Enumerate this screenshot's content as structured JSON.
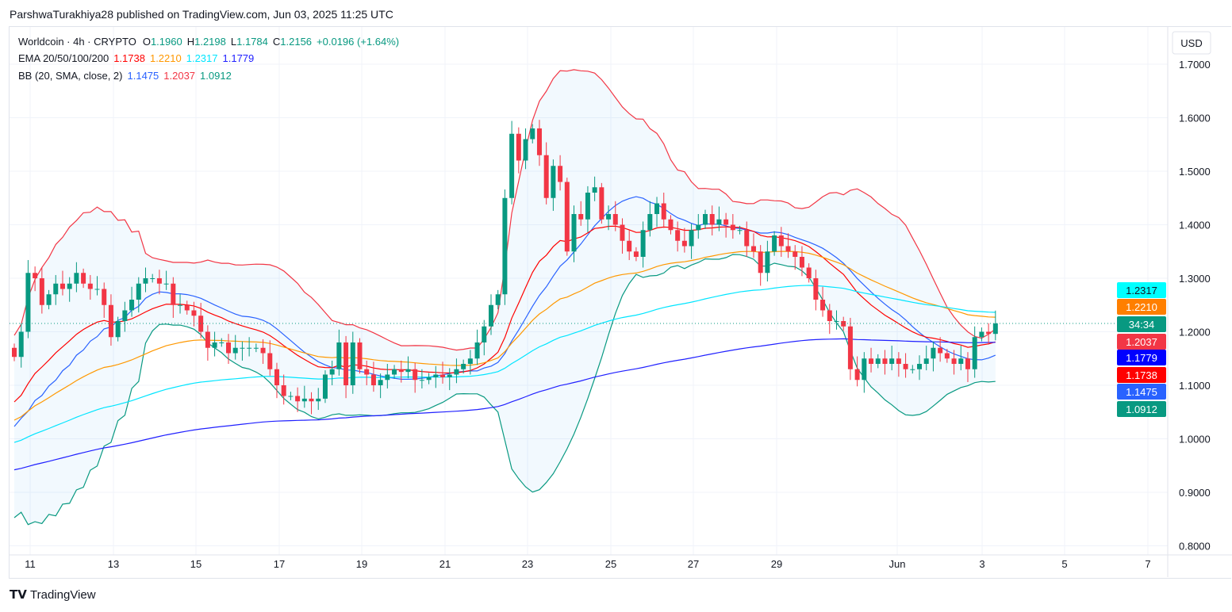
{
  "header": {
    "published": "ParshwaTurakhiya28 published on TradingView.com, Jun 03, 2025 11:25 UTC"
  },
  "legend": {
    "symbol": "Worldcoin · 4h · CRYPTO",
    "o_label": "O",
    "o": "1.1960",
    "h_label": "H",
    "h": "1.2198",
    "l_label": "L",
    "l": "1.1784",
    "c_label": "C",
    "c": "1.2156",
    "change": "+0.0196 (+1.64%)",
    "ema_label": "EMA 20/50/100/200",
    "ema20": "1.1738",
    "ema50": "1.2210",
    "ema100": "1.2317",
    "ema200": "1.1779",
    "bb_label": "BB (20, SMA, close, 2)",
    "bb_basis": "1.1475",
    "bb_upper": "1.2037",
    "bb_lower": "1.0912"
  },
  "currency": "USD",
  "countdown": "34:34",
  "footer": {
    "logo": "TradingView"
  },
  "colors": {
    "up": "#089981",
    "down": "#F23645",
    "ema20": "#FF0000",
    "ema50": "#FF9800",
    "ema100": "#00E5FF",
    "ema200": "#2020FF",
    "bb_basis": "#2962FF",
    "bb_upper": "#F23645",
    "bb_lower": "#089981"
  },
  "chart_data": {
    "type": "candlestick",
    "title": "Worldcoin · 4h · CRYPTO",
    "ylim": [
      0.8,
      1.7
    ],
    "y_ticks": [
      "1.7000",
      "1.6000",
      "1.5000",
      "1.4000",
      "1.3000",
      "1.2000",
      "1.1000",
      "1.0000",
      "0.9000",
      "0.8000"
    ],
    "x_ticks": [
      "11",
      "13",
      "15",
      "17",
      "19",
      "21",
      "23",
      "25",
      "27",
      "29",
      "Jun",
      "3",
      "5",
      "7"
    ],
    "closes": [
      1.153,
      1.2,
      1.31,
      1.3,
      1.25,
      1.27,
      1.29,
      1.28,
      1.29,
      1.31,
      1.29,
      1.28,
      1.28,
      1.25,
      1.19,
      1.22,
      1.24,
      1.26,
      1.29,
      1.3,
      1.3,
      1.29,
      1.29,
      1.25,
      1.25,
      1.24,
      1.23,
      1.2,
      1.17,
      1.18,
      1.18,
      1.16,
      1.17,
      1.17,
      1.17,
      1.17,
      1.16,
      1.13,
      1.1,
      1.08,
      1.08,
      1.07,
      1.075,
      1.07,
      1.075,
      1.12,
      1.13,
      1.18,
      1.1,
      1.18,
      1.13,
      1.12,
      1.1,
      1.11,
      1.12,
      1.13,
      1.125,
      1.13,
      1.11,
      1.11,
      1.115,
      1.12,
      1.115,
      1.12,
      1.13,
      1.14,
      1.15,
      1.18,
      1.21,
      1.25,
      1.27,
      1.45,
      1.57,
      1.52,
      1.56,
      1.58,
      1.53,
      1.45,
      1.51,
      1.48,
      1.35,
      1.42,
      1.41,
      1.46,
      1.47,
      1.41,
      1.42,
      1.4,
      1.37,
      1.35,
      1.34,
      1.39,
      1.42,
      1.44,
      1.41,
      1.39,
      1.37,
      1.36,
      1.39,
      1.4,
      1.42,
      1.4,
      1.41,
      1.4,
      1.39,
      1.39,
      1.36,
      1.35,
      1.31,
      1.35,
      1.38,
      1.36,
      1.35,
      1.34,
      1.32,
      1.3,
      1.26,
      1.24,
      1.22,
      1.22,
      1.21,
      1.13,
      1.11,
      1.15,
      1.14,
      1.15,
      1.14,
      1.15,
      1.14,
      1.13,
      1.13,
      1.14,
      1.15,
      1.17,
      1.16,
      1.15,
      1.14,
      1.15,
      1.13,
      1.19,
      1.2,
      1.196,
      1.2156
    ],
    "first_open": 1.17,
    "ema_seeds": {
      "ema20": 1.06,
      "ema50": 1.03,
      "ema100": 0.99,
      "ema200": 0.94
    },
    "bb_seed_mean": 1.02,
    "bb_seed_std": 0.075,
    "last_price": 1.2156,
    "price_labels": [
      {
        "value": "1.2317",
        "key": "ema100"
      },
      {
        "value": "1.2210",
        "key": "ema50"
      },
      {
        "value": "1.2037",
        "key": "bb_upper"
      },
      {
        "value": "1.1779",
        "key": "ema200"
      },
      {
        "value": "1.1738",
        "key": "ema20"
      },
      {
        "value": "1.1475",
        "key": "bb_basis"
      },
      {
        "value": "1.0912",
        "key": "bb_lower"
      }
    ]
  }
}
